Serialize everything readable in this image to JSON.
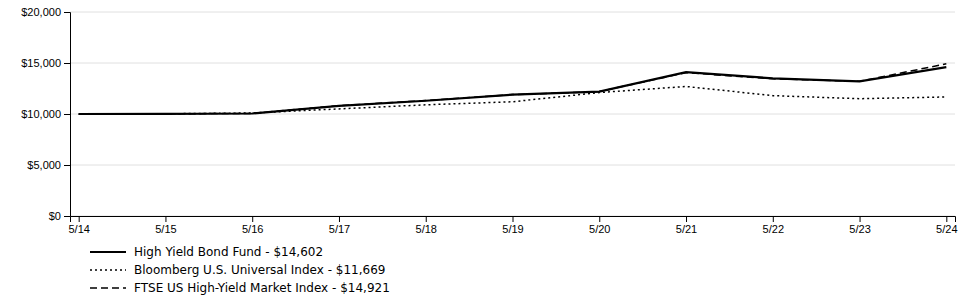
{
  "chart_data": {
    "type": "line",
    "categories": [
      "5/14",
      "5/15",
      "5/16",
      "5/17",
      "5/18",
      "5/19",
      "5/20",
      "5/21",
      "5/22",
      "5/23",
      "5/24"
    ],
    "series": [
      {
        "name": "High Yield Bond Fund - $14,602",
        "color": "#000000",
        "line_style": "solid",
        "values": [
          10000,
          10020,
          10050,
          10800,
          11300,
          11900,
          12200,
          14100,
          13500,
          13200,
          14602
        ]
      },
      {
        "name": "Bloomberg U.S. Universal Index - $11,669",
        "color": "#000000",
        "line_style": "dotted",
        "values": [
          9980,
          10020,
          10100,
          10500,
          10900,
          11200,
          12100,
          12700,
          11800,
          11500,
          11669
        ]
      },
      {
        "name": "FTSE US High-Yield Market Index - $14,921",
        "color": "#000000",
        "line_style": "dashed",
        "values": [
          10000,
          10020,
          10060,
          10820,
          11320,
          11900,
          12200,
          14050,
          13450,
          13200,
          14921
        ]
      }
    ],
    "ylim": [
      0,
      20000
    ],
    "yticks": [
      {
        "value": 0,
        "label": "$0"
      },
      {
        "value": 5000,
        "label": "$5,000"
      },
      {
        "value": 10000,
        "label": "$10,000"
      },
      {
        "value": 15000,
        "label": "$15,000"
      },
      {
        "value": 20000,
        "label": "$20,000"
      }
    ],
    "grid": true,
    "legend": "bottom"
  }
}
